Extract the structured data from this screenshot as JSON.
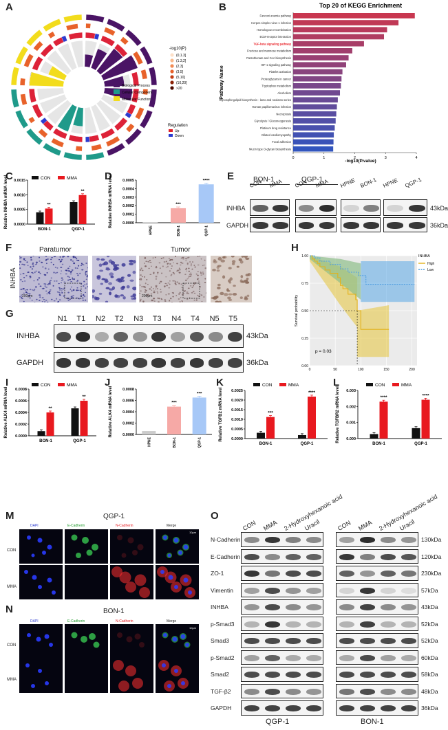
{
  "panels": {
    "A": "A",
    "B": "B",
    "C": "C",
    "D": "D",
    "E": "E",
    "F": "F",
    "G": "G",
    "H": "H",
    "I": "I",
    "J": "J",
    "K": "K",
    "L": "L",
    "M": "M",
    "N": "N",
    "O": "O"
  },
  "colors": {
    "con": "#111111",
    "mma": "#e8191f",
    "hpne": "#cccccc",
    "bon": "#f6a9a6",
    "qgp": "#a7c8f7"
  },
  "circos": {
    "legend_title": "-log10(P)",
    "legend_bins": [
      "(0,1.3]",
      "(1.3,2]",
      "(2,3]",
      "(3,5]",
      "(5,10]",
      "(10,20]",
      ">20"
    ],
    "categories": [
      "Biological Process",
      "Cellular Component",
      "Molecular Function"
    ],
    "regulation_title": "Regulation",
    "regulation": [
      "Up",
      "Down"
    ]
  },
  "chart_data": [
    {
      "id": "B",
      "type": "bar",
      "title": "Top 20 of KEGG Enrichment",
      "xlabel": "-log10(P.value)",
      "ylabel": "Pathway Name",
      "xlim": [
        0,
        4
      ],
      "xticks": [
        "0",
        "1",
        "2",
        "3",
        "4"
      ],
      "highlight": "TGF-beta signaling pathway",
      "categories": [
        "Fanconi anemia pathway",
        "Herpes simplex virus 1 infection",
        "Homologous recombination",
        "ECM-receptor interaction",
        "TGF-beta signaling pathway",
        "Fructose and mannose metabolism",
        "Pantothenate and CoA biosynthesis",
        "HIF-1 signaling pathway",
        "Platelet activation",
        "Proteoglycans in cancer",
        "Tryptophan metabolism",
        "Alcoholism",
        "Glycosphingolipid biosynthesis - lacto and neolacto series",
        "Human papillomavirus infection",
        "Necroptosis",
        "Glycolysis / Gluconeogenesis",
        "Platinum drug resistance",
        "Dilated cardiomyopathy",
        "Focal adhesion",
        "Mucin type O-glycan biosynthesis"
      ],
      "values": [
        3.95,
        3.42,
        3.05,
        2.95,
        2.3,
        1.92,
        1.8,
        1.72,
        1.6,
        1.57,
        1.55,
        1.52,
        1.45,
        1.42,
        1.4,
        1.38,
        1.35,
        1.32,
        1.31,
        1.3
      ]
    },
    {
      "id": "C",
      "type": "bar",
      "ylabel": "Relative INHBA mRNA level",
      "categories": [
        "BON-1",
        "QGP-1"
      ],
      "yticks": [
        "0.0000",
        "0.0005",
        "0.0010",
        "0.0015"
      ],
      "ylim": [
        0,
        0.0015
      ],
      "series": [
        {
          "name": "CON",
          "values": [
            0.0004,
            0.00075
          ]
        },
        {
          "name": "MMA",
          "values": [
            0.00053,
            0.00099
          ]
        }
      ],
      "sig": [
        "**",
        "**"
      ]
    },
    {
      "id": "D",
      "type": "bar",
      "ylabel": "Relative INHBA mRNA level",
      "categories": [
        "HPNE",
        "BON-1",
        "QGP-1"
      ],
      "yticks": [
        "0.0000",
        "0.0001",
        "0.0002",
        "0.0003",
        "0.0004",
        "0.0005"
      ],
      "ylim": [
        0,
        0.0005
      ],
      "values": [
        5e-06,
        0.00017,
        0.00045
      ],
      "sig": [
        "",
        "***",
        "****"
      ]
    },
    {
      "id": "H",
      "type": "line",
      "title": "INHBA",
      "xlabel": "",
      "ylabel": "Survival probability",
      "xticks": [
        "0",
        "50",
        "100",
        "150",
        "200"
      ],
      "yticks": [
        "0.00",
        "0.25",
        "0.50",
        "0.75",
        "1.00"
      ],
      "xlim": [
        0,
        210
      ],
      "ylim": [
        0,
        1
      ],
      "annotation": "p = 0.03",
      "series": [
        {
          "name": "High",
          "x": [
            0,
            5,
            10,
            15,
            20,
            30,
            40,
            55,
            60,
            65,
            75,
            90,
            93,
            100,
            155
          ],
          "y": [
            1.0,
            0.97,
            0.95,
            0.93,
            0.9,
            0.87,
            0.84,
            0.8,
            0.73,
            0.7,
            0.65,
            0.6,
            0.5,
            0.33,
            0.33
          ]
        },
        {
          "name": "Low",
          "x": [
            0,
            10,
            20,
            40,
            60,
            75,
            95,
            110,
            205
          ],
          "y": [
            1.0,
            0.98,
            0.95,
            0.92,
            0.88,
            0.85,
            0.82,
            0.74,
            0.74
          ]
        }
      ]
    },
    {
      "id": "I",
      "type": "bar",
      "ylabel": "Relative ALK4 mRNA level",
      "categories": [
        "BON-1",
        "QGP-1"
      ],
      "yticks": [
        "0.0000",
        "0.0002",
        "0.0004",
        "0.0006",
        "0.0008"
      ],
      "ylim": [
        0,
        0.0008
      ],
      "series": [
        {
          "name": "CON",
          "values": [
            8e-05,
            0.00047
          ]
        },
        {
          "name": "MMA",
          "values": [
            0.0004,
            0.0006
          ]
        }
      ],
      "sig": [
        "**",
        "**"
      ]
    },
    {
      "id": "J",
      "type": "bar",
      "ylabel": "Relative ALK4 mRNA level",
      "categories": [
        "HPNE",
        "BON-1",
        "QGP-1"
      ],
      "yticks": [
        "0.0000",
        "0.0002",
        "0.0004",
        "0.0006",
        "0.0008"
      ],
      "ylim": [
        0,
        0.0008
      ],
      "values": [
        6e-05,
        0.00049,
        0.00065
      ],
      "sig": [
        "",
        "***",
        "***"
      ]
    },
    {
      "id": "K",
      "type": "bar",
      "ylabel": "Relative TGFB2 mRNA level",
      "categories": [
        "BON-1",
        "QGP-1"
      ],
      "yticks": [
        "0.0000",
        "0.0005",
        "0.0010",
        "0.0015",
        "0.0020",
        "0.0025"
      ],
      "ylim": [
        0,
        0.0025
      ],
      "series": [
        {
          "name": "CON",
          "values": [
            0.0003,
            0.00018
          ]
        },
        {
          "name": "MMA",
          "values": [
            0.00112,
            0.00218
          ]
        }
      ],
      "sig": [
        "***",
        "****"
      ]
    },
    {
      "id": "L",
      "type": "bar",
      "ylabel": "Relative TGFBR2 mRNA level",
      "categories": [
        "BON-1",
        "QGP-1"
      ],
      "yticks": [
        "0.000",
        "0.001",
        "0.002",
        "0.003"
      ],
      "ylim": [
        0,
        0.003
      ],
      "series": [
        {
          "name": "CON",
          "values": [
            0.00028,
            0.00065
          ]
        },
        {
          "name": "MMA",
          "values": [
            0.0023,
            0.00242
          ]
        }
      ],
      "sig": [
        "****",
        "****"
      ]
    }
  ],
  "legend": {
    "con": "CON",
    "mma": "MMA"
  },
  "panelE": {
    "groups": [
      "BON-1",
      "QGP-1"
    ],
    "lanes": [
      "CON",
      "MMA",
      "CON",
      "MMA",
      "HPNE",
      "BON-1",
      "HPNE",
      "QGP-1"
    ],
    "rows": [
      "INHBA",
      "GAPDH"
    ],
    "kda": [
      "43kDa",
      "36kDa"
    ]
  },
  "panelF": {
    "row": "INHBA",
    "titles": [
      "Paratumor",
      "Tumor"
    ],
    "scale": "200μm"
  },
  "panelG": {
    "lanes": [
      "N1",
      "T1",
      "N2",
      "T2",
      "N3",
      "T3",
      "N4",
      "T4",
      "N5",
      "T5"
    ],
    "rows": [
      "INHBA",
      "GAPDH"
    ],
    "kda": [
      "43kDa",
      "36kDa"
    ]
  },
  "panelH": {
    "legend_items": [
      "High",
      "Low"
    ]
  },
  "panelM": {
    "title": "QGP-1",
    "channels": [
      "DAPI",
      "E-Cadherin",
      "N-Cadherin",
      "Merge"
    ],
    "rows": [
      "CON",
      "MMA"
    ],
    "scale": "10μm"
  },
  "panelN": {
    "title": "BON-1",
    "channels": [
      "DAPI",
      "E-Cadherin",
      "N-Cadherin",
      "Merge"
    ],
    "rows": [
      "CON",
      "MMA"
    ],
    "scale": "10μm"
  },
  "panelO": {
    "lanes": [
      "CON",
      "MMA",
      "2-Hydroxyhexanoic acid",
      "Uracil"
    ],
    "rows": [
      "N-Cadherin",
      "E-Cadherin",
      "ZO-1",
      "Vimentin",
      "INHBA",
      "p-Smad3",
      "Smad3",
      "p-Smad2",
      "Smad2",
      "TGF-β2",
      "GAPDH"
    ],
    "kda": [
      "130kDa",
      "120kDa",
      "230kDa",
      "57kDa",
      "43kDa",
      "52kDa",
      "52kDa",
      "60kDa",
      "58kDa",
      "48kDa",
      "36kDa"
    ],
    "cells": [
      "QGP-1",
      "BON-1"
    ]
  }
}
